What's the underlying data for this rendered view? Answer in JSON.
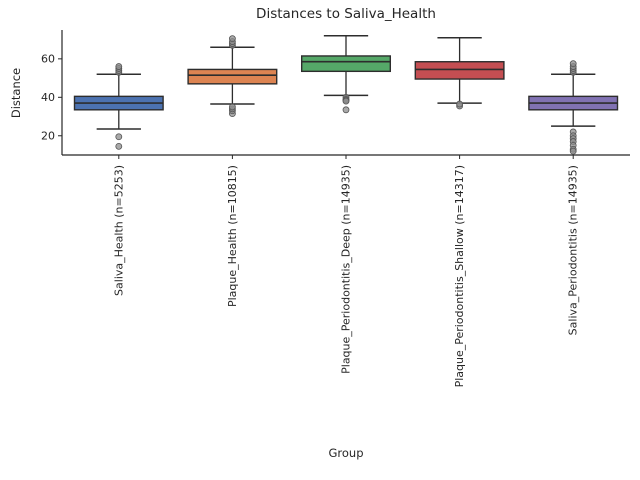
{
  "chart_data": {
    "type": "box",
    "title": "Distances to Saliva_Health",
    "xlabel": "Group",
    "ylabel": "Distance",
    "ylim": [
      10,
      75
    ],
    "yticks": [
      20,
      40,
      60
    ],
    "legend": "none",
    "grid": false,
    "categories": [
      "Saliva_Health (n=5253)",
      "Plaque_Health (n=10815)",
      "Plaque_Periodontitis_Deep (n=14935)",
      "Plaque_Periodontitis_Shallow (n=14317)",
      "Saliva_Periodontitis (n=14935)"
    ],
    "palette": [
      "#4C72B0",
      "#DD8452",
      "#55A868",
      "#C44E52",
      "#8172B3"
    ],
    "edge_color": "#2d2d2d",
    "flier_fill": "#8c8c8c",
    "flier_edge": "#555555",
    "axis_color": "#262626",
    "boxes": [
      {
        "group": "Saliva_Health (n=5253)",
        "whisker_low": 23.5,
        "q1": 33.5,
        "median": 37,
        "q3": 40.5,
        "whisker_high": 52,
        "outliers": [
          53,
          54,
          55,
          56,
          19.5,
          14.5
        ]
      },
      {
        "group": "Plaque_Health (n=10815)",
        "whisker_low": 36.5,
        "q1": 47,
        "median": 51.5,
        "q3": 54.5,
        "whisker_high": 66,
        "outliers": [
          67,
          68,
          69,
          70.5,
          31.5,
          33,
          34,
          35
        ]
      },
      {
        "group": "Plaque_Periodontitis_Deep (n=14935)",
        "whisker_low": 41,
        "q1": 53.5,
        "median": 58.5,
        "q3": 61.5,
        "whisker_high": 72,
        "outliers": [
          40,
          39,
          38.5,
          38,
          33.5
        ]
      },
      {
        "group": "Plaque_Periodontitis_Shallow (n=14317)",
        "whisker_low": 37,
        "q1": 49.5,
        "median": 54.5,
        "q3": 58.5,
        "whisker_high": 71,
        "outliers": [
          35.5,
          36.5
        ]
      },
      {
        "group": "Saliva_Periodontitis (n=14935)",
        "whisker_low": 25,
        "q1": 33.5,
        "median": 37,
        "q3": 40.5,
        "whisker_high": 52,
        "outliers": [
          53,
          54,
          55,
          56,
          57.5,
          22,
          20,
          18.5,
          17,
          15,
          13,
          12
        ]
      }
    ]
  }
}
